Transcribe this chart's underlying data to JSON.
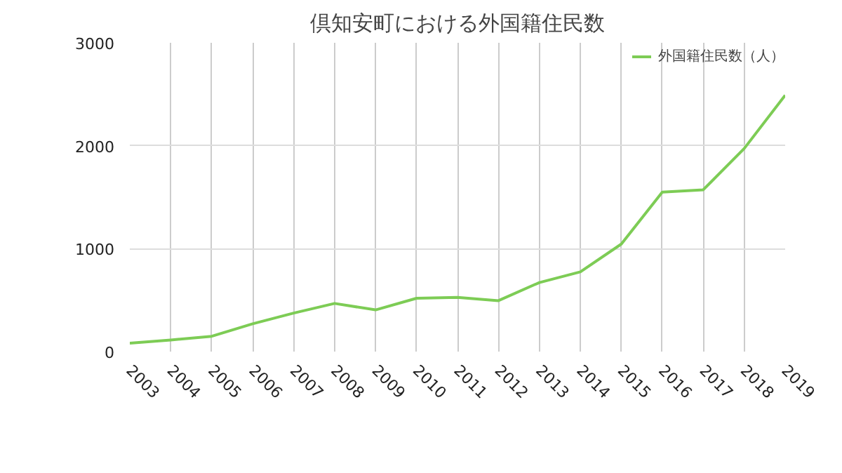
{
  "chart_data": {
    "type": "line",
    "title": "倶知安町における外国籍住民数",
    "x": [
      2003,
      2004,
      2005,
      2006,
      2007,
      2008,
      2009,
      2010,
      2011,
      2012,
      2013,
      2014,
      2015,
      2016,
      2017,
      2018,
      2019
    ],
    "series": [
      {
        "name": "外国籍住民数（人）",
        "color": "#7dcc55",
        "values": [
          81,
          113,
          149,
          270,
          374,
          468,
          405,
          518,
          527,
          495,
          671,
          775,
          1045,
          1550,
          1572,
          1973,
          2491
        ]
      }
    ],
    "xlim": [
      2003,
      2019
    ],
    "xticks": [
      2003,
      2004,
      2005,
      2006,
      2007,
      2008,
      2009,
      2010,
      2011,
      2012,
      2013,
      2014,
      2015,
      2016,
      2017,
      2018,
      2019
    ],
    "ylim": [
      0,
      3000
    ],
    "yticks": [
      0,
      1000,
      2000,
      3000
    ],
    "grid": true,
    "legend": "top right",
    "marker": "none",
    "line_style": "solid"
  }
}
